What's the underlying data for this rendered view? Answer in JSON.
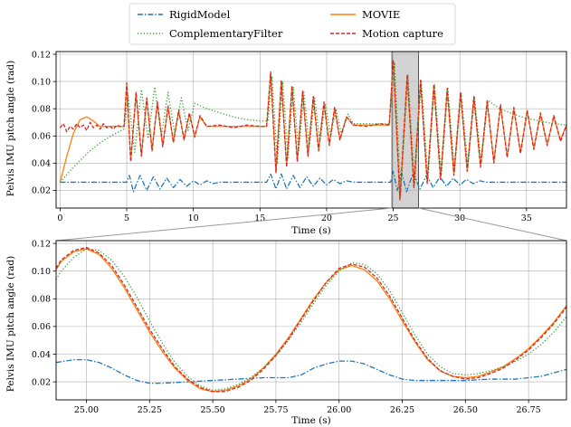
{
  "legend": {
    "items": [
      {
        "label": "RigidModel",
        "color": "#1f77b4",
        "dash": "dashdot"
      },
      {
        "label": "MOVIE",
        "color": "#ff7f0e",
        "dash": "solid"
      },
      {
        "label": "ComplementaryFilter",
        "color": "#2ca02c",
        "dash": "dotted"
      },
      {
        "label": "Motion capture",
        "color": "#d62728",
        "dash": "dashed"
      }
    ]
  },
  "chart_data": [
    {
      "type": "line",
      "xlabel": "Time (s)",
      "ylabel": "Pelvis IMU pitch angle (rad)",
      "xlim": [
        -0.3,
        38
      ],
      "ylim": [
        0.007,
        0.122
      ],
      "xticks": [
        0,
        5,
        10,
        15,
        20,
        25,
        30,
        35
      ],
      "xticklabels": [
        "0",
        "5",
        "10",
        "15",
        "20",
        "25",
        "30",
        "35"
      ],
      "yticks": [
        0.02,
        0.04,
        0.06,
        0.08,
        0.1,
        0.12
      ],
      "yticklabels": [
        "0.02",
        "0.04",
        "0.06",
        "0.08",
        "0.10",
        "0.12"
      ],
      "grid": true,
      "highlight_span": [
        24.9,
        26.9
      ],
      "highlight_color": "#d3d3d3",
      "series": [
        {
          "name": "RigidModel",
          "color": "#1f77b4",
          "dash": "dashdot",
          "x": [
            0,
            5.0,
            5.2,
            5.5,
            6.0,
            6.5,
            7.0,
            7.5,
            8.0,
            8.5,
            9.0,
            9.5,
            10.0,
            10.5,
            11.0,
            11.5,
            12.0,
            15.5,
            15.8,
            16.2,
            16.6,
            17.0,
            17.5,
            18.0,
            18.5,
            19.0,
            19.5,
            20.0,
            20.5,
            21.0,
            21.5,
            22.0,
            24.8,
            25.0,
            25.3,
            25.6,
            26.0,
            26.5,
            27.0,
            27.5,
            28.0,
            28.5,
            29.0,
            29.5,
            30.0,
            30.5,
            31.0,
            31.5,
            32.0,
            33.0,
            38.0
          ],
          "y": [
            0.026,
            0.026,
            0.031,
            0.019,
            0.031,
            0.02,
            0.03,
            0.021,
            0.029,
            0.022,
            0.028,
            0.023,
            0.027,
            0.024,
            0.027,
            0.025,
            0.026,
            0.026,
            0.032,
            0.021,
            0.032,
            0.021,
            0.031,
            0.022,
            0.03,
            0.023,
            0.029,
            0.024,
            0.028,
            0.025,
            0.027,
            0.026,
            0.026,
            0.034,
            0.02,
            0.034,
            0.019,
            0.033,
            0.021,
            0.031,
            0.022,
            0.03,
            0.023,
            0.029,
            0.024,
            0.028,
            0.025,
            0.027,
            0.026,
            0.026,
            0.026
          ]
        },
        {
          "name": "MOVIE",
          "color": "#ff7f0e",
          "dash": "solid",
          "x": [
            0,
            0.5,
            1.0,
            1.5,
            2.0,
            2.5,
            3.0,
            3.5,
            4.0,
            4.8,
            5.0,
            5.3,
            5.7,
            6.1,
            6.5,
            6.9,
            7.3,
            7.7,
            8.1,
            8.5,
            8.9,
            9.3,
            9.7,
            10.1,
            10.5,
            11.0,
            15.5,
            15.8,
            16.2,
            16.6,
            17.0,
            17.4,
            17.8,
            18.2,
            18.6,
            19.0,
            19.4,
            19.8,
            20.2,
            20.6,
            21.0,
            21.5,
            22.0,
            24.7,
            25.0,
            25.5,
            26.05,
            26.55,
            27.05,
            27.55,
            28.05,
            28.55,
            29.05,
            29.55,
            30.05,
            30.55,
            31.05,
            31.55,
            32.05,
            32.55,
            33.05,
            33.55,
            34.05,
            34.55,
            35.05,
            35.55,
            36.05,
            36.55,
            37.05,
            37.55,
            38.0
          ],
          "y": [
            0.026,
            0.045,
            0.062,
            0.072,
            0.074,
            0.071,
            0.067,
            0.067,
            0.067,
            0.067,
            0.098,
            0.042,
            0.091,
            0.046,
            0.087,
            0.05,
            0.084,
            0.053,
            0.081,
            0.056,
            0.078,
            0.058,
            0.076,
            0.06,
            0.074,
            0.067,
            0.067,
            0.106,
            0.034,
            0.1,
            0.038,
            0.096,
            0.042,
            0.092,
            0.046,
            0.088,
            0.05,
            0.084,
            0.054,
            0.08,
            0.058,
            0.074,
            0.068,
            0.068,
            0.115,
            0.014,
            0.104,
            0.023,
            0.1,
            0.026,
            0.097,
            0.029,
            0.094,
            0.032,
            0.091,
            0.035,
            0.088,
            0.038,
            0.085,
            0.041,
            0.082,
            0.045,
            0.08,
            0.048,
            0.078,
            0.051,
            0.076,
            0.054,
            0.074,
            0.057,
            0.068
          ]
        },
        {
          "name": "ComplementaryFilter",
          "color": "#2ca02c",
          "dash": "dotted",
          "x": [
            0,
            1.0,
            2.0,
            3.0,
            4.0,
            4.8,
            5.1,
            5.6,
            6.1,
            6.6,
            7.1,
            7.6,
            8.1,
            8.6,
            9.1,
            9.6,
            10.1,
            11.0,
            12.0,
            13.0,
            14.0,
            15.0,
            15.6,
            15.9,
            16.3,
            16.7,
            17.1,
            17.5,
            17.9,
            18.3,
            18.7,
            19.1,
            19.5,
            19.9,
            20.3,
            20.7,
            21.1,
            21.6,
            22.0,
            24.7,
            25.1,
            25.55,
            26.1,
            26.6,
            27.1,
            27.6,
            28.1,
            28.6,
            29.1,
            29.6,
            30.1,
            30.6,
            31.1,
            31.6,
            32.1,
            33.0,
            34.0,
            35.0,
            36.0,
            37.0,
            38.0
          ],
          "y": [
            0.026,
            0.037,
            0.047,
            0.055,
            0.061,
            0.065,
            0.09,
            0.048,
            0.094,
            0.058,
            0.096,
            0.06,
            0.092,
            0.062,
            0.088,
            0.064,
            0.084,
            0.08,
            0.077,
            0.074,
            0.072,
            0.071,
            0.071,
            0.104,
            0.04,
            0.1,
            0.044,
            0.096,
            0.048,
            0.092,
            0.052,
            0.088,
            0.056,
            0.084,
            0.06,
            0.08,
            0.062,
            0.076,
            0.069,
            0.069,
            0.114,
            0.016,
            0.105,
            0.025,
            0.101,
            0.028,
            0.098,
            0.031,
            0.095,
            0.034,
            0.092,
            0.037,
            0.089,
            0.04,
            0.086,
            0.08,
            0.076,
            0.073,
            0.071,
            0.069,
            0.068
          ]
        },
        {
          "name": "Motion capture",
          "color": "#d62728",
          "dash": "dashed",
          "x": [
            0,
            0.25,
            0.5,
            0.75,
            1.0,
            1.25,
            1.5,
            1.75,
            2.0,
            2.25,
            2.5,
            2.75,
            3.0,
            3.25,
            3.5,
            3.75,
            4.0,
            4.25,
            4.5,
            4.8,
            5.0,
            5.3,
            5.7,
            6.1,
            6.5,
            6.9,
            7.3,
            7.7,
            8.1,
            8.5,
            8.9,
            9.3,
            9.7,
            10.1,
            10.5,
            11.0,
            12.0,
            13.0,
            14.0,
            15.0,
            15.5,
            15.8,
            16.2,
            16.6,
            17.0,
            17.4,
            17.8,
            18.2,
            18.6,
            19.0,
            19.4,
            19.8,
            20.2,
            20.6,
            21.0,
            21.5,
            22.0,
            23.0,
            24.0,
            24.7,
            25.0,
            25.5,
            26.05,
            26.55,
            27.05,
            27.55,
            28.05,
            28.55,
            29.05,
            29.55,
            30.05,
            30.55,
            31.05,
            31.55,
            32.05,
            32.55,
            33.05,
            33.55,
            34.05,
            34.55,
            35.05,
            35.55,
            36.05,
            36.55,
            37.05,
            37.55,
            38.0
          ],
          "y": [
            0.066,
            0.069,
            0.063,
            0.067,
            0.065,
            0.069,
            0.066,
            0.068,
            0.064,
            0.07,
            0.066,
            0.068,
            0.065,
            0.069,
            0.066,
            0.067,
            0.065,
            0.068,
            0.067,
            0.067,
            0.099,
            0.041,
            0.092,
            0.045,
            0.088,
            0.049,
            0.085,
            0.052,
            0.082,
            0.055,
            0.079,
            0.057,
            0.077,
            0.059,
            0.075,
            0.067,
            0.068,
            0.066,
            0.068,
            0.067,
            0.067,
            0.107,
            0.033,
            0.101,
            0.037,
            0.097,
            0.041,
            0.093,
            0.045,
            0.089,
            0.049,
            0.085,
            0.053,
            0.081,
            0.057,
            0.074,
            0.068,
            0.067,
            0.069,
            0.068,
            0.116,
            0.013,
            0.105,
            0.022,
            0.101,
            0.025,
            0.098,
            0.028,
            0.095,
            0.031,
            0.092,
            0.034,
            0.089,
            0.037,
            0.086,
            0.04,
            0.083,
            0.044,
            0.081,
            0.047,
            0.079,
            0.05,
            0.077,
            0.053,
            0.075,
            0.056,
            0.068
          ]
        }
      ]
    },
    {
      "type": "line",
      "xlabel": "Time (s)",
      "ylabel": "Pelvis IMU pitch angle (rad)",
      "xlim": [
        24.88,
        26.9
      ],
      "ylim": [
        0.007,
        0.122
      ],
      "xticks": [
        25.0,
        25.25,
        25.5,
        25.75,
        26.0,
        26.25,
        26.5,
        26.75
      ],
      "xticklabels": [
        "25.00",
        "25.25",
        "25.50",
        "25.75",
        "26.00",
        "26.25",
        "26.50",
        "26.75"
      ],
      "yticks": [
        0.02,
        0.04,
        0.06,
        0.08,
        0.1,
        0.12
      ],
      "yticklabels": [
        "0.02",
        "0.04",
        "0.06",
        "0.08",
        "0.10",
        "0.12"
      ],
      "grid": true,
      "series": [
        {
          "name": "RigidModel",
          "color": "#1f77b4",
          "dash": "dashdot",
          "x": [
            24.88,
            24.95,
            25.0,
            25.05,
            25.1,
            25.15,
            25.2,
            25.25,
            25.3,
            25.4,
            25.5,
            25.6,
            25.7,
            25.8,
            25.85,
            25.9,
            25.95,
            26.0,
            26.05,
            26.1,
            26.15,
            26.2,
            26.25,
            26.3,
            26.35,
            26.4,
            26.5,
            26.6,
            26.7,
            26.8,
            26.9
          ],
          "y": [
            0.034,
            0.036,
            0.036,
            0.034,
            0.03,
            0.025,
            0.021,
            0.019,
            0.019,
            0.02,
            0.021,
            0.022,
            0.023,
            0.023,
            0.025,
            0.03,
            0.033,
            0.035,
            0.035,
            0.033,
            0.029,
            0.025,
            0.022,
            0.021,
            0.021,
            0.021,
            0.021,
            0.022,
            0.022,
            0.024,
            0.029
          ]
        },
        {
          "name": "MOVIE",
          "color": "#ff7f0e",
          "dash": "solid",
          "x": [
            24.88,
            24.9,
            24.95,
            25.0,
            25.05,
            25.1,
            25.15,
            25.2,
            25.25,
            25.3,
            25.35,
            25.4,
            25.45,
            25.5,
            25.55,
            25.6,
            25.65,
            25.7,
            25.75,
            25.8,
            25.85,
            25.9,
            25.95,
            26.0,
            26.05,
            26.1,
            26.15,
            26.2,
            26.25,
            26.3,
            26.35,
            26.4,
            26.45,
            26.5,
            26.55,
            26.6,
            26.65,
            26.7,
            26.75,
            26.8,
            26.85,
            26.9
          ],
          "y": [
            0.101,
            0.107,
            0.114,
            0.116,
            0.112,
            0.102,
            0.088,
            0.072,
            0.056,
            0.042,
            0.03,
            0.021,
            0.015,
            0.013,
            0.014,
            0.017,
            0.022,
            0.03,
            0.04,
            0.052,
            0.066,
            0.08,
            0.092,
            0.101,
            0.104,
            0.101,
            0.093,
            0.08,
            0.064,
            0.049,
            0.036,
            0.028,
            0.024,
            0.023,
            0.024,
            0.027,
            0.031,
            0.037,
            0.044,
            0.053,
            0.063,
            0.075
          ]
        },
        {
          "name": "ComplementaryFilter",
          "color": "#2ca02c",
          "dash": "dotted",
          "x": [
            24.88,
            24.9,
            24.95,
            25.0,
            25.05,
            25.1,
            25.15,
            25.2,
            25.25,
            25.3,
            25.35,
            25.4,
            25.45,
            25.5,
            25.55,
            25.6,
            25.65,
            25.7,
            25.75,
            25.8,
            25.85,
            25.9,
            25.95,
            26.0,
            26.05,
            26.1,
            26.15,
            26.2,
            26.25,
            26.3,
            26.35,
            26.4,
            26.45,
            26.5,
            26.55,
            26.6,
            26.65,
            26.7,
            26.75,
            26.8,
            26.85,
            26.9
          ],
          "y": [
            0.094,
            0.1,
            0.11,
            0.116,
            0.115,
            0.108,
            0.096,
            0.081,
            0.064,
            0.048,
            0.034,
            0.024,
            0.017,
            0.014,
            0.015,
            0.018,
            0.023,
            0.03,
            0.039,
            0.05,
            0.063,
            0.077,
            0.09,
            0.1,
            0.106,
            0.105,
            0.098,
            0.086,
            0.07,
            0.054,
            0.04,
            0.031,
            0.026,
            0.025,
            0.026,
            0.028,
            0.031,
            0.035,
            0.04,
            0.047,
            0.056,
            0.067
          ]
        },
        {
          "name": "Motion capture",
          "color": "#d62728",
          "dash": "dashed",
          "x": [
            24.88,
            24.9,
            24.95,
            25.0,
            25.05,
            25.1,
            25.15,
            25.2,
            25.25,
            25.3,
            25.35,
            25.4,
            25.45,
            25.5,
            25.55,
            25.6,
            25.65,
            25.7,
            25.75,
            25.8,
            25.85,
            25.9,
            25.95,
            26.0,
            26.05,
            26.1,
            26.15,
            26.2,
            26.25,
            26.3,
            26.35,
            26.4,
            26.45,
            26.5,
            26.55,
            26.6,
            26.65,
            26.7,
            26.75,
            26.8,
            26.85,
            26.9
          ],
          "y": [
            0.102,
            0.108,
            0.115,
            0.117,
            0.113,
            0.104,
            0.09,
            0.074,
            0.058,
            0.044,
            0.031,
            0.022,
            0.016,
            0.013,
            0.013,
            0.016,
            0.021,
            0.029,
            0.039,
            0.051,
            0.065,
            0.079,
            0.092,
            0.102,
            0.105,
            0.103,
            0.095,
            0.082,
            0.066,
            0.05,
            0.037,
            0.028,
            0.024,
            0.022,
            0.023,
            0.026,
            0.03,
            0.036,
            0.043,
            0.052,
            0.062,
            0.074
          ]
        }
      ]
    }
  ]
}
